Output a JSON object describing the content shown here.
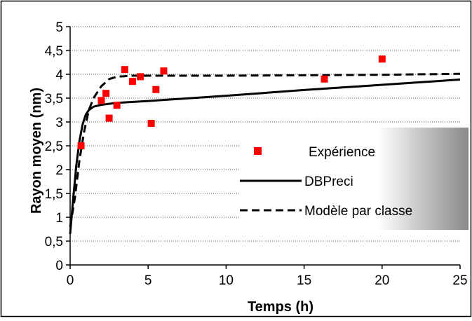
{
  "chart_data": {
    "type": "scatter",
    "xlabel": "Temps (h)",
    "ylabel": "Rayon moyen (nm)",
    "xlim": [
      0,
      25
    ],
    "ylim": [
      0,
      5
    ],
    "x_ticks": [
      "0",
      "5",
      "10",
      "15",
      "20",
      "25"
    ],
    "y_ticks": [
      "0",
      "0,5",
      "1",
      "1,5",
      "2",
      "2,5",
      "3",
      "3,5",
      "4",
      "4,5",
      "5"
    ],
    "grid": "horizontal dotted",
    "legend_position": "right",
    "series": [
      {
        "name": "Expérience",
        "kind": "markers",
        "color": "#ff0000",
        "x": [
          0.7,
          2.0,
          2.3,
          2.5,
          3.0,
          3.5,
          4.0,
          4.5,
          5.2,
          5.5,
          6.0,
          16.3,
          20.0
        ],
        "y": [
          2.5,
          3.45,
          3.6,
          3.08,
          3.35,
          4.1,
          3.85,
          3.95,
          2.97,
          3.68,
          4.07,
          3.9,
          4.32
        ]
      },
      {
        "name": "DBPreci",
        "kind": "solid",
        "color": "#000000",
        "x": [
          0,
          0.2,
          0.4,
          0.6,
          0.8,
          1.0,
          1.2,
          1.5,
          2.0,
          3.0,
          5.0,
          10.0,
          15.0,
          20.0,
          25.0
        ],
        "y": [
          0.65,
          1.4,
          2.1,
          2.6,
          2.95,
          3.15,
          3.25,
          3.32,
          3.36,
          3.4,
          3.44,
          3.55,
          3.67,
          3.78,
          3.89
        ]
      },
      {
        "name": "Modèle par classe",
        "kind": "dashed",
        "color": "#000000",
        "x": [
          0,
          0.3,
          0.6,
          0.9,
          1.2,
          1.5,
          2.0,
          2.5,
          3.0,
          4.0,
          6.0,
          10.0,
          15.0,
          20.0,
          25.0
        ],
        "y": [
          0.8,
          1.4,
          2.2,
          2.8,
          3.25,
          3.5,
          3.75,
          3.9,
          3.95,
          3.97,
          3.97,
          3.97,
          3.98,
          3.99,
          4.01
        ]
      }
    ]
  }
}
